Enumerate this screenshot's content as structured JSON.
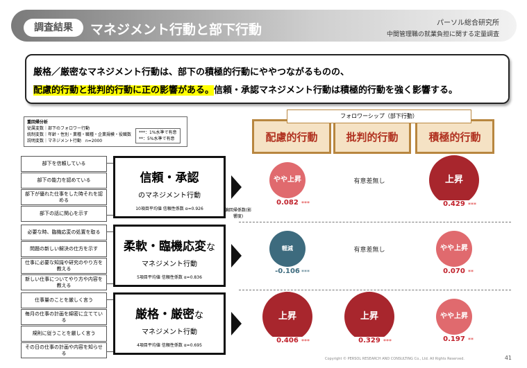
{
  "header": {
    "tag": "調査結果",
    "title": "マネジメント行動と部下行動",
    "org": "パーソル総合研究所",
    "survey": "中間管理職の就業負担に関する定量調査"
  },
  "summary": {
    "line1": "厳格／厳密なマネジメント行動は、部下の積極的行動にややつながるものの、",
    "highlight": "配慮的行動と批判的行動に正の影響がある。",
    "rest": "信頼・承認マネジメント行動は積極的行動を強く影響する。"
  },
  "analysis": {
    "title": "重回帰分析",
    "lines": [
      "従属変数｜部下のフォロワー行動",
      "統制変数｜年齢・性別・業種・職種・企業規模・役職数",
      "説明変数｜マネジメント行動　n=2000"
    ],
    "legend": [
      "***：1%水準で有意",
      "**：5%水準で有意"
    ]
  },
  "followership": {
    "title": "フォロワーシップ（部下行動）",
    "columns": [
      "配慮的行動",
      "批判的行動",
      "積極的行動"
    ]
  },
  "coefficient_label": "偏回帰係数(影響度)",
  "groups": [
    {
      "items": [
        "部下を信頼している",
        "部下の能力を認めている",
        "部下が優れた仕事をした時それを認める",
        "部下の話に関心を示す"
      ],
      "title": "信頼・承認",
      "title_suffix": null,
      "subtitle": "のマネジメント行動",
      "note": "10項目平均値 信頼性係数 α=0.926",
      "results": [
        {
          "label": "やや上昇",
          "value": "0.082",
          "sig": "***"
        },
        {
          "label": "有意差無し"
        },
        {
          "label": "上昇",
          "value": "0.429",
          "sig": "***"
        }
      ]
    },
    {
      "items": [
        "必要な時、臨機応変の処置を取る",
        "問題の新しい解決の仕方を示す",
        "仕事に必要な知識や研究のやり方を教える",
        "新しい仕事についてやり方や内容を教える"
      ],
      "title": "柔軟・臨機応変",
      "title_suffix": "な",
      "subtitle": "マネジメント行動",
      "note": "5項目平均値 信頼性係数 α=0.836",
      "results": [
        {
          "label": "軽減",
          "value": "-0.106",
          "sig": "***"
        },
        {
          "label": "有意差無し"
        },
        {
          "label": "やや上昇",
          "value": "0.070",
          "sig": "**"
        }
      ]
    },
    {
      "items": [
        "仕事量のことを厳しく言う",
        "毎月の仕事の計画を綿密に立てている",
        "規則に従うことを厳しく言う",
        "その日の仕事の計画や内容を知らせる"
      ],
      "title": "厳格・厳密",
      "title_suffix": "な",
      "subtitle": "マネジメント行動",
      "note": "4項目平均値 信頼性係数 α=0.695",
      "results": [
        {
          "label": "上昇",
          "value": "0.406",
          "sig": "***"
        },
        {
          "label": "上昇",
          "value": "0.329",
          "sig": "***"
        },
        {
          "label": "やや上昇",
          "value": "0.197",
          "sig": "**"
        }
      ]
    }
  ],
  "footer": {
    "copyright": "Copyright © PERSOL RESEARCH AND CONSULTING Co., Ltd. All Rights Reserved.",
    "page": "41"
  }
}
